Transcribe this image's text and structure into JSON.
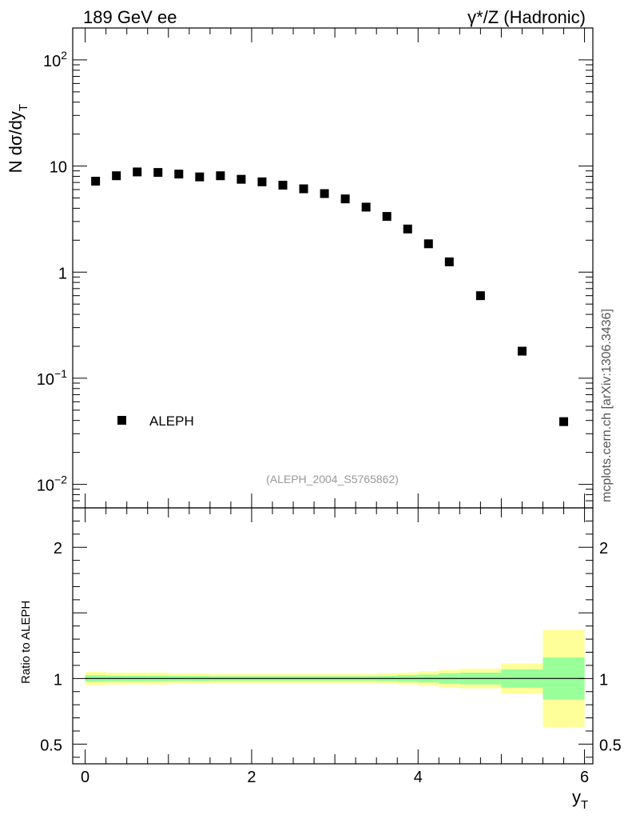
{
  "header": {
    "left_title": "189 GeV ee",
    "right_title": "γ*/Z (Hadronic)"
  },
  "side_label": "mcplots.cern.ch [arXiv:1306.3436]",
  "watermark": "(ALEPH_2004_S5765862)",
  "chart_data": [
    {
      "type": "scatter",
      "panel": "main",
      "ylabel": "N dσ/dy",
      "ylabel_sub": "T",
      "yscale": "log",
      "xlim": [
        -0.15,
        6.1
      ],
      "ylim": [
        0.006,
        200
      ],
      "ytick_labels": [
        {
          "value": 0.01,
          "base": "10",
          "exp": "−2"
        },
        {
          "value": 0.1,
          "base": "10",
          "exp": "−1"
        },
        {
          "value": 1,
          "base": "1",
          "exp": ""
        },
        {
          "value": 10,
          "base": "10",
          "exp": ""
        },
        {
          "value": 100,
          "base": "10",
          "exp": "2"
        }
      ],
      "legend": {
        "entry": "ALEPH",
        "placement": "lower-left"
      },
      "series": [
        {
          "name": "ALEPH",
          "marker": "square",
          "color": "#000000",
          "x": [
            0.125,
            0.375,
            0.625,
            0.875,
            1.125,
            1.375,
            1.625,
            1.875,
            2.125,
            2.375,
            2.625,
            2.875,
            3.125,
            3.375,
            3.625,
            3.875,
            4.125,
            4.375,
            4.75,
            5.25,
            5.75
          ],
          "y": [
            7.2,
            8.1,
            8.8,
            8.7,
            8.4,
            7.9,
            8.1,
            7.5,
            7.1,
            6.6,
            6.1,
            5.5,
            4.9,
            4.1,
            3.35,
            2.55,
            1.85,
            1.25,
            0.6,
            0.18,
            0.039
          ]
        }
      ]
    },
    {
      "type": "area",
      "panel": "ratio",
      "ylabel": "Ratio to ALEPH",
      "xlabel": "y",
      "xlabel_sub": "T",
      "xlim": [
        -0.15,
        6.1
      ],
      "ylim": [
        0.35,
        2.3
      ],
      "ytick_labels": [
        {
          "value": 0.5,
          "label": "0.5"
        },
        {
          "value": 1,
          "label": "1"
        },
        {
          "value": 2,
          "label": "2"
        }
      ],
      "xtick_labels": [
        {
          "value": 0,
          "label": "0"
        },
        {
          "value": 2,
          "label": "2"
        },
        {
          "value": 4,
          "label": "4"
        },
        {
          "value": 6,
          "label": "6"
        }
      ],
      "reference_line": 1,
      "bin_edges": [
        0,
        0.25,
        0.5,
        0.75,
        1.0,
        1.25,
        1.5,
        1.75,
        2.0,
        2.25,
        2.5,
        2.75,
        3.0,
        3.25,
        3.5,
        3.75,
        4.0,
        4.25,
        4.5,
        5.0,
        5.5,
        6.0
      ],
      "bands": [
        {
          "color": "#ffff99",
          "lo": [
            0.95,
            0.955,
            0.955,
            0.955,
            0.96,
            0.96,
            0.965,
            0.965,
            0.965,
            0.965,
            0.965,
            0.965,
            0.965,
            0.965,
            0.96,
            0.955,
            0.945,
            0.935,
            0.925,
            0.885,
            0.63
          ],
          "hi": [
            1.05,
            1.045,
            1.045,
            1.045,
            1.04,
            1.04,
            1.035,
            1.035,
            1.035,
            1.035,
            1.035,
            1.035,
            1.035,
            1.035,
            1.04,
            1.045,
            1.055,
            1.065,
            1.075,
            1.115,
            1.37
          ]
        },
        {
          "color": "#99ff99",
          "lo": [
            0.975,
            0.978,
            0.978,
            0.978,
            0.98,
            0.98,
            0.982,
            0.982,
            0.982,
            0.982,
            0.982,
            0.982,
            0.982,
            0.982,
            0.98,
            0.975,
            0.97,
            0.96,
            0.955,
            0.93,
            0.84
          ],
          "hi": [
            1.025,
            1.022,
            1.022,
            1.022,
            1.02,
            1.02,
            1.018,
            1.018,
            1.018,
            1.018,
            1.018,
            1.018,
            1.018,
            1.018,
            1.02,
            1.025,
            1.03,
            1.04,
            1.045,
            1.07,
            1.16
          ]
        }
      ]
    }
  ]
}
